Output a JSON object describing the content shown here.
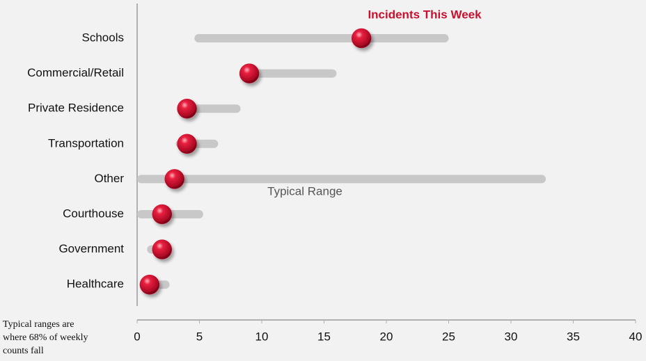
{
  "chart_data": {
    "type": "dot-range",
    "categories": [
      "Schools",
      "Commercial/Retail",
      "Private Residence",
      "Transportation",
      "Other",
      "Courthouse",
      "Government",
      "Healthcare"
    ],
    "ranges": {
      "name": "Typical Range",
      "color": "#c8c8c8",
      "low": [
        4.6,
        9,
        4,
        3.1,
        0,
        0,
        0.8,
        0.2
      ],
      "high": [
        25,
        16,
        8.3,
        6.5,
        32.8,
        5.3,
        2.7,
        2.6
      ]
    },
    "markers": {
      "name": "Incidents This Week",
      "color": "#c8102e",
      "values": [
        18,
        9,
        4,
        4,
        3,
        2,
        2,
        1
      ]
    },
    "xlim": [
      0,
      40
    ],
    "xticks": [
      0,
      5,
      10,
      15,
      20,
      25,
      30,
      35,
      40
    ],
    "note": "Typical ranges are where 68% of weekly counts fall"
  }
}
